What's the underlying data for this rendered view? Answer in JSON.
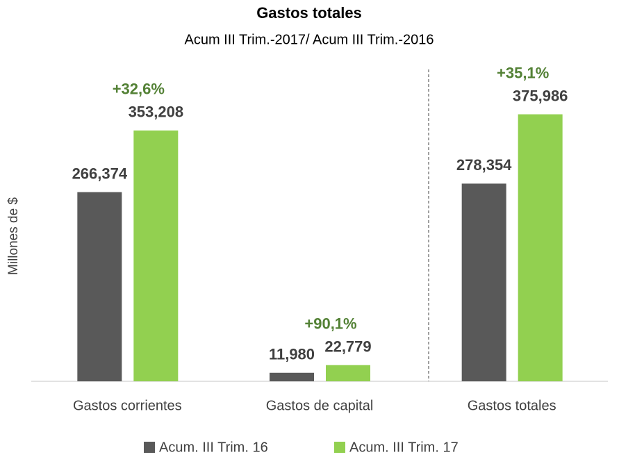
{
  "chart_data": {
    "type": "bar",
    "title": "Gastos totales",
    "subtitle": "Acum III Trim.-2017/ Acum III Trim.-2016",
    "y_label": "Millones de $",
    "categories": [
      "Gastos corrientes",
      "Gastos de capital",
      "Gastos totales"
    ],
    "series": [
      {
        "name": "Acum. III Trim. 16",
        "color": "#595959",
        "values": [
          266374,
          11980,
          278354
        ],
        "value_labels": [
          "266,374",
          "11,980",
          "278,354"
        ]
      },
      {
        "name": "Acum. III Trim. 17",
        "color": "#92d050",
        "values": [
          353208,
          22779,
          375986
        ],
        "value_labels": [
          "353,208",
          "22,779",
          "375,986"
        ]
      }
    ],
    "annotations": [
      "+32,6%",
      "+90,1%",
      "+35,1%"
    ],
    "annotation_color": "#538135",
    "ylim": [
      0,
      400000
    ],
    "legend": "bottom"
  }
}
